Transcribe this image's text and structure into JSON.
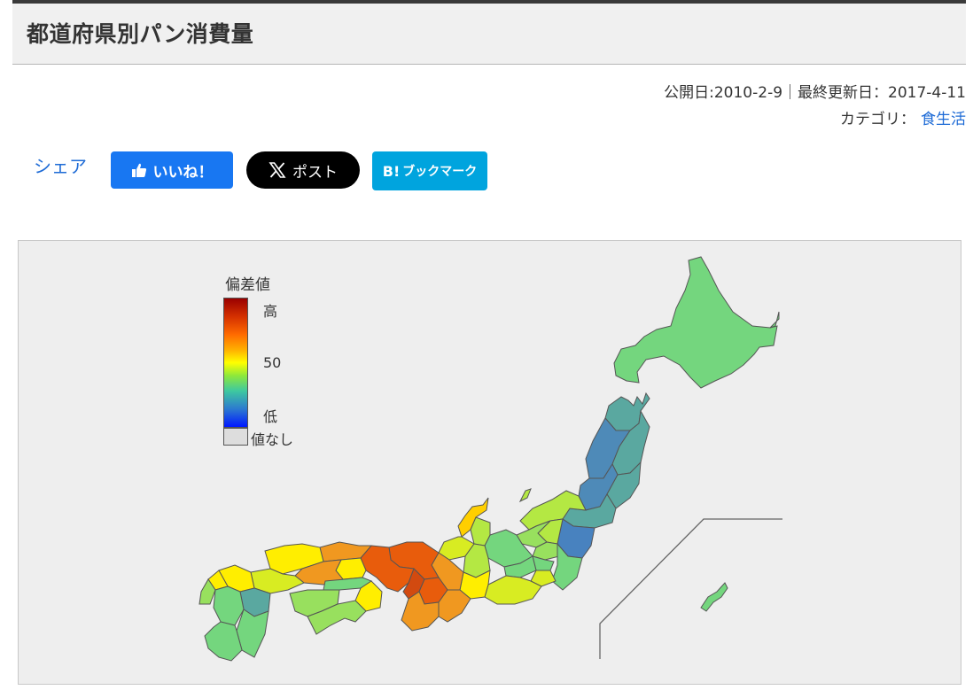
{
  "header": {
    "title": "都道府県別パン消費量"
  },
  "meta": {
    "dates": "公開日:2010-2-9｜最終更新日：2017-4-11",
    "category_label": "カテゴリ：",
    "category_link": "食生活"
  },
  "share": {
    "label": "シェア",
    "facebook": "いいね！",
    "x": "ポスト",
    "hatena": "ブックマーク"
  },
  "legend": {
    "title": "偏差値",
    "high": "高",
    "mid": "50",
    "low": "低",
    "none": "値なし"
  },
  "colors": {
    "facebook": "#1877f2",
    "x": "#000000",
    "hatena": "#00a4de",
    "link": "#1e6bd6"
  }
}
